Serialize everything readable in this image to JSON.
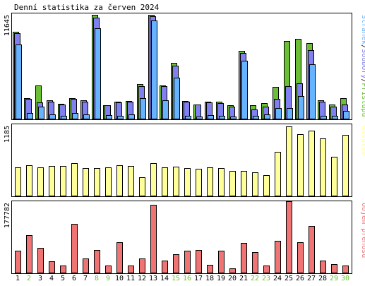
{
  "title": "Denní statistika za červen 2024",
  "colors": {
    "hits": "#6bbf34",
    "files": "#8080f0",
    "pages": "#66b3ff",
    "visits": "#ffff99",
    "kbytes": "#f07474",
    "weekend_label": "#6bbf34",
    "weekday_label": "#000000"
  },
  "chart_data": [
    {
      "type": "bar",
      "panel": "top",
      "ylim": [
        0,
        11645
      ],
      "y_max_label": "11645",
      "legend": [
        "Stránek",
        "Soubory",
        "Přístupů"
      ],
      "legend_separator": "/",
      "categories": [
        "1",
        "2",
        "3",
        "4",
        "5",
        "6",
        "7",
        "8",
        "9",
        "10",
        "11",
        "12",
        "13",
        "14",
        "15",
        "16",
        "17",
        "18",
        "19",
        "20",
        "21",
        "22",
        "23",
        "24",
        "25",
        "26",
        "27",
        "28",
        "29",
        "30"
      ],
      "series": [
        {
          "name": "Přístupů",
          "color_key": "hits",
          "values": [
            9650,
            2300,
            3700,
            2000,
            1650,
            2300,
            2000,
            11450,
            1500,
            1900,
            1950,
            3800,
            11450,
            3700,
            6200,
            1950,
            1600,
            1900,
            1850,
            1500,
            7500,
            1500,
            1700,
            3550,
            8600,
            8850,
            8400,
            2000,
            1600,
            2300
          ]
        },
        {
          "name": "Soubory",
          "color_key": "files",
          "values": [
            9450,
            2200,
            1800,
            1900,
            1550,
            2200,
            1900,
            11200,
            1450,
            1800,
            1850,
            3600,
            11300,
            3600,
            5900,
            1900,
            1550,
            1800,
            1750,
            1350,
            7300,
            1050,
            1300,
            2150,
            3600,
            3900,
            7600,
            1900,
            1300,
            1600
          ]
        },
        {
          "name": "Stránek",
          "color_key": "pages",
          "values": [
            8200,
            650,
            1350,
            450,
            350,
            650,
            450,
            10000,
            400,
            350,
            450,
            2300,
            10900,
            2050,
            4500,
            350,
            250,
            400,
            350,
            250,
            6400,
            300,
            450,
            1150,
            1150,
            2500,
            6000,
            350,
            300,
            850
          ]
        }
      ]
    },
    {
      "type": "bar",
      "panel": "middle",
      "ylim": [
        0,
        1185
      ],
      "y_max_label": "1185",
      "legend": [
        "Návštěv"
      ],
      "categories": [
        "1",
        "2",
        "3",
        "4",
        "5",
        "6",
        "7",
        "8",
        "9",
        "10",
        "11",
        "12",
        "13",
        "14",
        "15",
        "16",
        "17",
        "18",
        "19",
        "20",
        "21",
        "22",
        "23",
        "24",
        "25",
        "26",
        "27",
        "28",
        "29",
        "30"
      ],
      "series": [
        {
          "name": "Návštěv",
          "color_key": "visits",
          "values": [
            470,
            500,
            475,
            490,
            490,
            540,
            455,
            460,
            475,
            500,
            490,
            310,
            540,
            465,
            485,
            460,
            445,
            475,
            460,
            410,
            410,
            385,
            340,
            730,
            1150,
            1020,
            1080,
            950,
            650,
            1010
          ]
        }
      ]
    },
    {
      "type": "bar",
      "panel": "bottom",
      "ylim": [
        0,
        177782
      ],
      "y_max_label": "177782",
      "legend": [
        "Objem přenosu"
      ],
      "categories": [
        "1",
        "2",
        "3",
        "4",
        "5",
        "6",
        "7",
        "8",
        "9",
        "10",
        "11",
        "12",
        "13",
        "14",
        "15",
        "16",
        "17",
        "18",
        "19",
        "20",
        "21",
        "22",
        "23",
        "24",
        "25",
        "26",
        "27",
        "28",
        "29",
        "30"
      ],
      "series": [
        {
          "name": "Objem přenosu",
          "color_key": "kbytes",
          "values": [
            55000,
            93000,
            61000,
            28000,
            17000,
            121000,
            36000,
            57000,
            17000,
            75000,
            17000,
            36000,
            169000,
            30000,
            46000,
            55000,
            57000,
            19000,
            55000,
            11000,
            74000,
            51000,
            17000,
            79000,
            177782,
            76000,
            116000,
            30000,
            22000,
            17000
          ]
        }
      ]
    }
  ],
  "day_types": [
    "wd",
    "we",
    "wd",
    "wd",
    "wd",
    "wd",
    "wd",
    "we",
    "we",
    "wd",
    "wd",
    "wd",
    "wd",
    "wd",
    "we",
    "we",
    "wd",
    "wd",
    "wd",
    "wd",
    "wd",
    "we",
    "we",
    "wd",
    "wd",
    "wd",
    "wd",
    "wd",
    "we",
    "we"
  ]
}
